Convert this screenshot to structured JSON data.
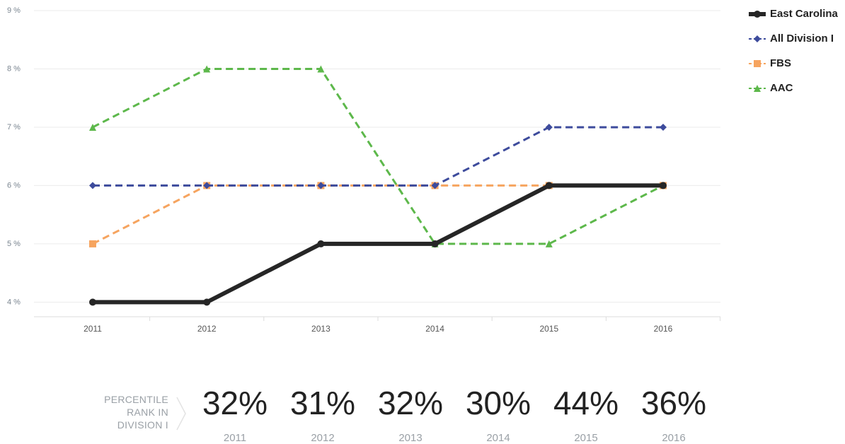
{
  "chart_data": {
    "type": "line",
    "categories": [
      "2011",
      "2012",
      "2013",
      "2014",
      "2015",
      "2016"
    ],
    "ylim": [
      3.75,
      9
    ],
    "yticks": [
      {
        "value": 4,
        "label": "4 %"
      },
      {
        "value": 5,
        "label": "5 %"
      },
      {
        "value": 6,
        "label": "6 %"
      },
      {
        "value": 7,
        "label": "7 %"
      },
      {
        "value": 8,
        "label": "8 %"
      },
      {
        "value": 9,
        "label": "9 %"
      }
    ],
    "grid": true,
    "legend": "top-right",
    "series": [
      {
        "name": "East Carolina",
        "color": "#262626",
        "marker": "circle",
        "dash": false,
        "width": 6,
        "values": [
          4,
          4,
          5,
          5,
          6,
          6
        ]
      },
      {
        "name": "All Division I",
        "color": "#3d4b9c",
        "marker": "diamond",
        "dash": true,
        "width": 3,
        "values": [
          6,
          6,
          6,
          6,
          7,
          7
        ]
      },
      {
        "name": "FBS",
        "color": "#f6a45f",
        "marker": "square",
        "dash": true,
        "width": 3,
        "values": [
          5,
          6,
          6,
          6,
          6,
          6
        ]
      },
      {
        "name": "AAC",
        "color": "#5db84b",
        "marker": "triangle",
        "dash": true,
        "width": 3,
        "values": [
          7,
          8,
          8,
          5,
          5,
          6
        ]
      }
    ]
  },
  "percentile_rank": {
    "label": "PERCENTILE RANK IN DIVISION I",
    "values": [
      32,
      31,
      32,
      30,
      44,
      36
    ],
    "value_labels": [
      "32%",
      "31%",
      "32%",
      "30%",
      "44%",
      "36%"
    ]
  }
}
